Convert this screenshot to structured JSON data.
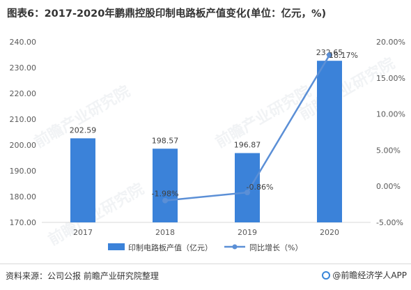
{
  "title": "图表6：2017-2020年鹏鼎控股印制电路板产值变化(单位：亿元，%)",
  "source": "资料来源：公司公报 前瞻产业研究院整理",
  "brand": "@前瞻经济学人APP",
  "watermark": "前瞻产业研究院",
  "colors": {
    "bar": "#3b82d9",
    "line": "#5b8fd6",
    "axis_text": "#595959",
    "grid": "#d9d9d9"
  },
  "chart_data": {
    "type": "bar",
    "categories": [
      "2017",
      "2018",
      "2019",
      "2020"
    ],
    "series": [
      {
        "name": "印制电路板产值（亿元）",
        "type": "bar",
        "axis": "left",
        "values": [
          202.59,
          198.57,
          196.87,
          232.65
        ],
        "labels": [
          "202.59",
          "198.57",
          "196.87",
          "232.65"
        ]
      },
      {
        "name": "同比增长（%）",
        "type": "line",
        "axis": "right",
        "values": [
          null,
          -1.98,
          -0.86,
          18.17
        ],
        "labels": [
          "",
          "-1.98%",
          "-0.86%",
          "18.17%"
        ]
      }
    ],
    "y_left": {
      "min": 170,
      "max": 240,
      "ticks": [
        "170.00",
        "180.00",
        "190.00",
        "200.00",
        "210.00",
        "220.00",
        "230.00",
        "240.00"
      ]
    },
    "y_right": {
      "min": -5,
      "max": 20,
      "ticks": [
        "-5.00%",
        "0.00%",
        "5.00%",
        "10.00%",
        "15.00%",
        "20.00%"
      ]
    },
    "grid": false,
    "legend": "bottom"
  }
}
